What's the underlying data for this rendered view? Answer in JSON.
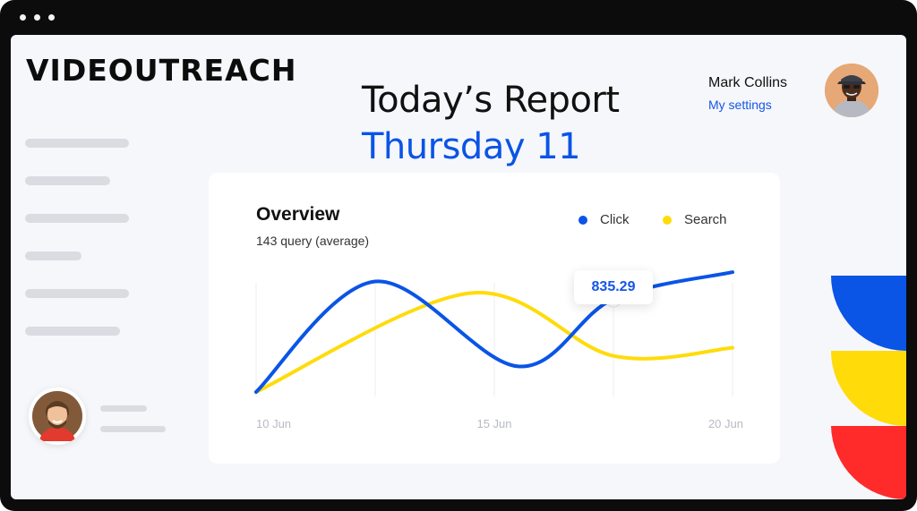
{
  "app": {
    "brand": "VIDEOUTREACH"
  },
  "header": {
    "title": "Today’s Report",
    "day": "Thursday 11"
  },
  "user": {
    "name": "Mark Collins",
    "settings_label": "My settings"
  },
  "sidebar": {
    "items": 6
  },
  "overview": {
    "title": "Overview",
    "subtitle": "143 query (average)",
    "legend": [
      {
        "label": "Click",
        "color": "#0a54e6"
      },
      {
        "label": "Search",
        "color": "#ffdb0a"
      }
    ],
    "tooltip_value": "835.29"
  },
  "chart_data": {
    "type": "line",
    "x_ticks": [
      "10 Jun",
      "15 Jun",
      "20 Jun"
    ],
    "series": [
      {
        "name": "Click",
        "color": "#0a54e6",
        "points": [
          [
            0,
            0
          ],
          [
            0.25,
            0.95
          ],
          [
            0.55,
            0.22
          ],
          [
            0.75,
            0.8
          ],
          [
            1,
            1.03
          ]
        ]
      },
      {
        "name": "Search",
        "color": "#ffdb0a",
        "points": [
          [
            0,
            0
          ],
          [
            0.45,
            0.85
          ],
          [
            0.75,
            0.31
          ],
          [
            1,
            0.38
          ]
        ]
      }
    ],
    "highlight": {
      "series": "Click",
      "x": 0.75,
      "value": "835.29"
    },
    "grid": "vertical",
    "legend_position": "top-right"
  },
  "colors": {
    "accent_blue": "#0a54e6",
    "accent_yellow": "#ffdb0a",
    "accent_red": "#ff2a2a",
    "frame": "#0c0c0d"
  }
}
